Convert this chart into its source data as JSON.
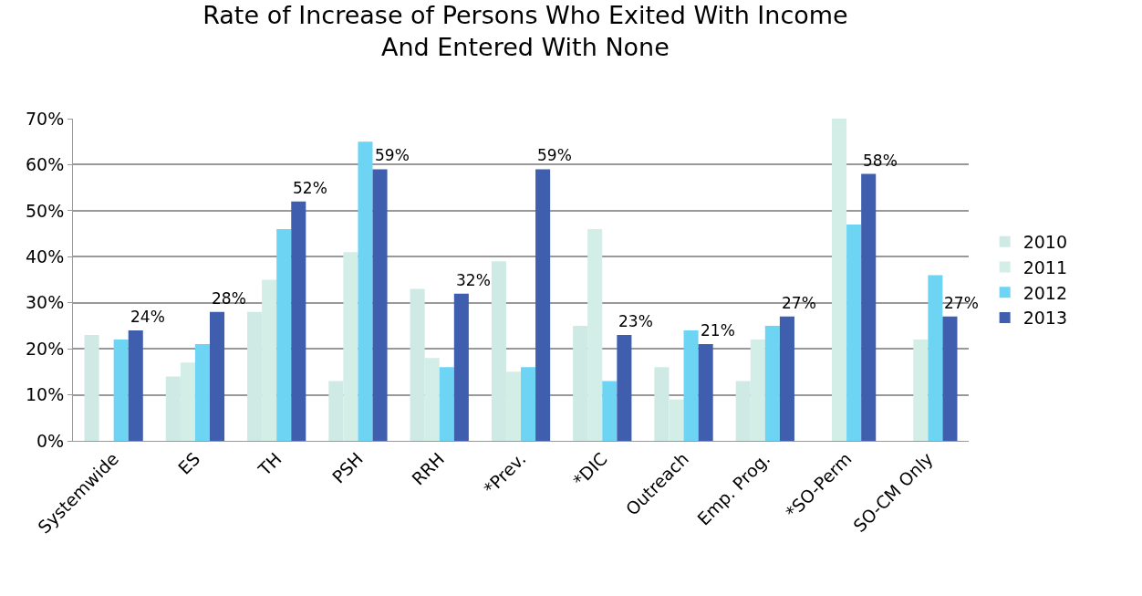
{
  "chart_data": {
    "type": "bar",
    "title": "Rate of Increase of Persons Who Exited With Income\nAnd Entered With None",
    "categories": [
      "Systemwide",
      "ES",
      "TH",
      "PSH",
      "RRH",
      "*Prev.",
      "*DIC",
      "Outreach",
      "Emp. Prog.",
      "*SO-Perm",
      "SO-CM Only"
    ],
    "series": [
      {
        "name": "2010",
        "color": "#cfeae4",
        "values": [
          23,
          14,
          28,
          13,
          33,
          39,
          25,
          16,
          13,
          null,
          null
        ]
      },
      {
        "name": "2011",
        "color": "#d3ede7",
        "values": [
          null,
          17,
          35,
          41,
          18,
          15,
          46,
          9,
          22,
          70,
          22
        ]
      },
      {
        "name": "2012",
        "color": "#6dd5f3",
        "values": [
          22,
          21,
          46,
          65,
          16,
          16,
          13,
          24,
          25,
          47,
          36
        ]
      },
      {
        "name": "2013",
        "color": "#3f5fae",
        "values": [
          24,
          28,
          52,
          59,
          32,
          59,
          23,
          21,
          27,
          58,
          27
        ],
        "value_labels": [
          "24%",
          "28%",
          "52%",
          "59%",
          "32%",
          "59%",
          "23%",
          "21%",
          "27%",
          "58%",
          "27%"
        ]
      }
    ],
    "ylim": [
      0,
      70
    ],
    "yticks": [
      {
        "value": 0,
        "label": "0%"
      },
      {
        "value": 10,
        "label": "10%"
      },
      {
        "value": 20,
        "label": "20%"
      },
      {
        "value": 30,
        "label": "30%"
      },
      {
        "value": 40,
        "label": "40%"
      },
      {
        "value": 50,
        "label": "50%"
      },
      {
        "value": 60,
        "label": "60%"
      },
      {
        "value": 70,
        "label": "70%"
      }
    ],
    "grid": "y",
    "legend": "right"
  }
}
